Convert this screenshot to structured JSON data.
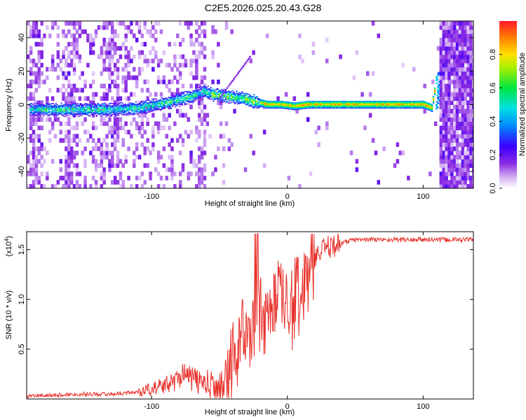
{
  "title": "C2E5.2026.025.20.43.G28",
  "colors": {
    "snr_line": "#e8302a",
    "background": "#ffffff",
    "axis": "#000000"
  },
  "chart_data": [
    {
      "type": "heatmap",
      "title": "C2E5.2026.025.20.43.G28",
      "xlabel": "Height of straight line (km)",
      "ylabel": "Frequency (Hz)",
      "xlim": [
        -192,
        137
      ],
      "ylim": [
        -50,
        50
      ],
      "xticks": [
        -100,
        0,
        100
      ],
      "yticks": [
        -40,
        -20,
        0,
        20,
        40
      ],
      "colorbar": {
        "label": "Normalized spectral amplitude",
        "range": [
          0,
          1
        ],
        "ticks": [
          "0.0",
          "0.2",
          "0.4",
          "0.6",
          "0.8"
        ],
        "colormap": "rainbow (purple-blue-cyan-green-yellow-red)"
      },
      "ridge": {
        "description": "dominant frequency ridge",
        "x": [
          -190,
          -170,
          -150,
          -130,
          -110,
          -90,
          -80,
          -70,
          -62,
          -55,
          -45,
          -35,
          -25,
          -15,
          -5,
          5,
          15,
          30,
          50,
          80,
          100,
          106,
          110
        ],
        "y": [
          -3,
          -3,
          -3,
          -3,
          -2,
          1,
          3,
          5,
          8,
          6,
          5,
          4,
          2,
          0,
          0,
          -1,
          0,
          0,
          0,
          0,
          0,
          -2,
          18
        ]
      },
      "grid": false
    },
    {
      "type": "line",
      "xlabel": "Height of straight line (km)",
      "ylabel": "SNR (10 * v/v)",
      "multiplier_label": "(x10",
      "multiplier_exp": "4",
      "multiplier_close": ")",
      "xlim": [
        -192,
        137
      ],
      "ylim": [
        0,
        1.68
      ],
      "xticks": [
        -100,
        0,
        100
      ],
      "yticks": [
        "0.5",
        "1.0",
        "1.5"
      ],
      "ytick_values": [
        0.5,
        1.0,
        1.5
      ],
      "series": [
        {
          "x": [
            -190,
            -170,
            -150,
            -130,
            -110,
            -100,
            -90,
            -80,
            -77,
            -74,
            -70,
            -60,
            -50,
            -45,
            -40,
            -35,
            -30,
            -25,
            -22,
            -20,
            -15,
            -10,
            -5,
            0,
            5,
            10,
            15,
            20,
            25,
            30,
            40,
            50,
            70,
            90,
            100,
            110,
            120,
            137
          ],
          "y": [
            0.03,
            0.04,
            0.05,
            0.05,
            0.07,
            0.1,
            0.14,
            0.2,
            0.3,
            0.22,
            0.2,
            0.15,
            0.1,
            0.25,
            0.45,
            0.62,
            0.75,
            0.88,
            1.0,
            0.9,
            0.95,
            1.02,
            1.08,
            0.95,
            1.05,
            1.2,
            1.3,
            1.4,
            1.48,
            1.52,
            1.57,
            1.6,
            1.6,
            1.6,
            1.6,
            1.6,
            1.6,
            1.6
          ]
        }
      ],
      "grid": false
    }
  ]
}
